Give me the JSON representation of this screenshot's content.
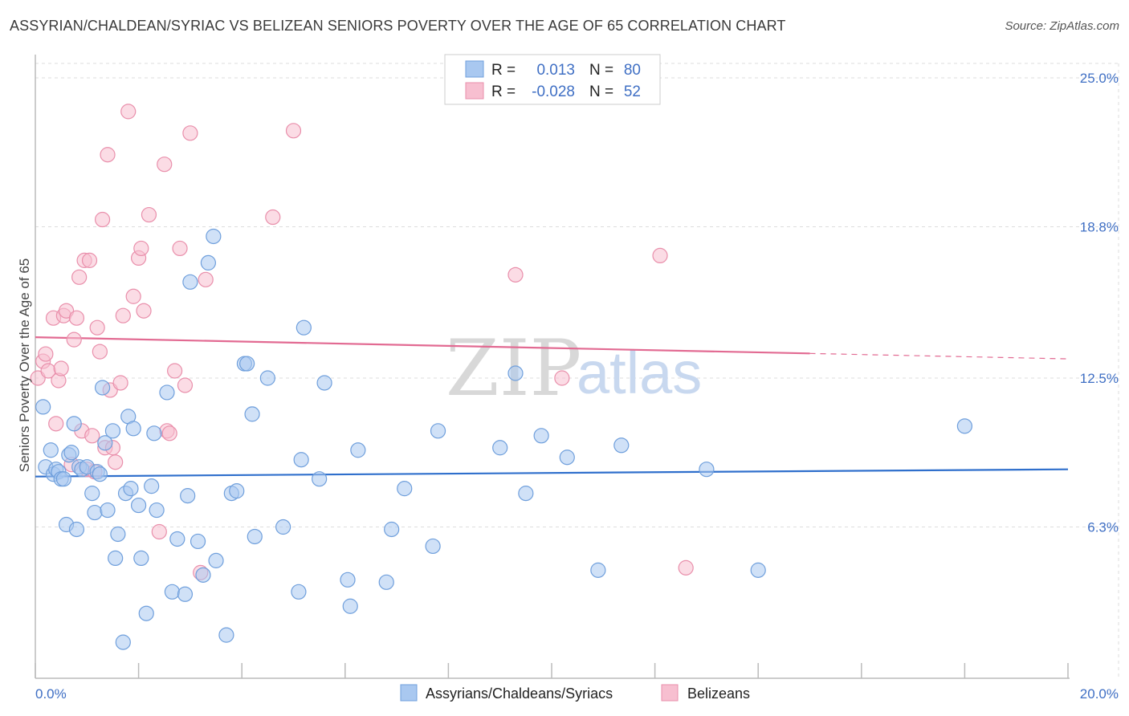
{
  "title": "ASSYRIAN/CHALDEAN/SYRIAC VS BELIZEAN SENIORS POVERTY OVER THE AGE OF 65 CORRELATION CHART",
  "source": "Source: ZipAtlas.com",
  "watermark": {
    "zip": "ZIP",
    "atlas": "atlas"
  },
  "colors": {
    "blue_fill": "#a9c8f0",
    "blue_stroke": "#6f9fdc",
    "blue_line": "#2f6fcc",
    "pink_fill": "#f7bfd0",
    "pink_stroke": "#e98fab",
    "pink_line": "#e26a92",
    "axis_label": "#3f6fc4",
    "grid": "#dddddd"
  },
  "legend": {
    "r_label": "R =",
    "n_label": "N =",
    "rows": [
      {
        "series": "blue",
        "r": "0.013",
        "n": "80"
      },
      {
        "series": "pink",
        "r": "-0.028",
        "n": "52"
      }
    ]
  },
  "chart_data": {
    "type": "scatter",
    "title": "ASSYRIAN/CHALDEAN/SYRIAC VS BELIZEAN SENIORS POVERTY OVER THE AGE OF 65 CORRELATION CHART",
    "xlabel": "",
    "ylabel": "Seniors Poverty Over the Age of 65",
    "xlim": [
      0,
      20
    ],
    "ylim": [
      0,
      25
    ],
    "x_tick_labels": [
      "0.0%",
      "20.0%"
    ],
    "y_ticks": [
      6.3,
      12.5,
      18.8,
      25.0
    ],
    "y_tick_labels": [
      "6.3%",
      "12.5%",
      "18.8%",
      "25.0%"
    ],
    "series": [
      {
        "name": "Assyrians/Chaldeans/Syriacs",
        "color": "blue",
        "r": 0.013,
        "n": 80,
        "trend": {
          "x": [
            0,
            20
          ],
          "y": [
            8.4,
            8.7
          ],
          "dashed_from": null
        },
        "points": [
          [
            0.15,
            11.3
          ],
          [
            0.2,
            8.8
          ],
          [
            0.3,
            9.5
          ],
          [
            0.35,
            8.5
          ],
          [
            0.4,
            8.7
          ],
          [
            0.45,
            8.6
          ],
          [
            0.5,
            8.3
          ],
          [
            0.55,
            8.3
          ],
          [
            0.6,
            6.4
          ],
          [
            0.65,
            9.3
          ],
          [
            0.7,
            9.4
          ],
          [
            0.75,
            10.6
          ],
          [
            0.8,
            6.2
          ],
          [
            0.85,
            8.8
          ],
          [
            0.9,
            8.7
          ],
          [
            1.0,
            8.8
          ],
          [
            1.1,
            7.7
          ],
          [
            1.15,
            6.9
          ],
          [
            1.2,
            8.6
          ],
          [
            1.25,
            8.5
          ],
          [
            1.3,
            12.1
          ],
          [
            1.35,
            9.8
          ],
          [
            1.4,
            7.0
          ],
          [
            1.5,
            10.3
          ],
          [
            1.55,
            5.0
          ],
          [
            1.6,
            6.0
          ],
          [
            1.7,
            1.5
          ],
          [
            1.75,
            7.7
          ],
          [
            1.8,
            10.9
          ],
          [
            1.85,
            7.9
          ],
          [
            1.9,
            10.4
          ],
          [
            2.0,
            7.2
          ],
          [
            2.05,
            5.0
          ],
          [
            2.15,
            2.7
          ],
          [
            2.25,
            8.0
          ],
          [
            2.3,
            10.2
          ],
          [
            2.35,
            7.0
          ],
          [
            2.55,
            11.9
          ],
          [
            2.65,
            3.6
          ],
          [
            2.75,
            5.8
          ],
          [
            2.9,
            3.5
          ],
          [
            2.95,
            7.6
          ],
          [
            3.0,
            16.5
          ],
          [
            3.15,
            5.7
          ],
          [
            3.25,
            4.3
          ],
          [
            3.35,
            17.3
          ],
          [
            3.45,
            18.4
          ],
          [
            3.5,
            4.9
          ],
          [
            3.7,
            1.8
          ],
          [
            3.8,
            7.7
          ],
          [
            3.9,
            7.8
          ],
          [
            4.05,
            13.1
          ],
          [
            4.1,
            13.1
          ],
          [
            4.2,
            11.0
          ],
          [
            4.25,
            5.9
          ],
          [
            4.5,
            12.5
          ],
          [
            4.8,
            6.3
          ],
          [
            5.1,
            3.6
          ],
          [
            5.15,
            9.1
          ],
          [
            5.2,
            14.6
          ],
          [
            5.5,
            8.3
          ],
          [
            5.6,
            12.3
          ],
          [
            6.05,
            4.1
          ],
          [
            6.1,
            3.0
          ],
          [
            6.25,
            9.5
          ],
          [
            6.8,
            4.0
          ],
          [
            6.9,
            6.2
          ],
          [
            7.15,
            7.9
          ],
          [
            7.7,
            5.5
          ],
          [
            7.8,
            10.3
          ],
          [
            9.0,
            9.6
          ],
          [
            9.3,
            12.7
          ],
          [
            9.5,
            7.7
          ],
          [
            9.8,
            10.1
          ],
          [
            10.3,
            9.2
          ],
          [
            10.9,
            4.5
          ],
          [
            11.35,
            9.7
          ],
          [
            13.0,
            8.7
          ],
          [
            14.0,
            4.5
          ],
          [
            18.0,
            10.5
          ]
        ]
      },
      {
        "name": "Belizeans",
        "color": "pink",
        "r": -0.028,
        "n": 52,
        "trend": {
          "x": [
            0,
            20
          ],
          "y": [
            14.2,
            13.3
          ],
          "dashed_from": 15.0
        },
        "points": [
          [
            0.05,
            12.5
          ],
          [
            0.15,
            13.2
          ],
          [
            0.2,
            13.5
          ],
          [
            0.25,
            12.8
          ],
          [
            0.35,
            15.0
          ],
          [
            0.4,
            10.6
          ],
          [
            0.45,
            12.4
          ],
          [
            0.5,
            12.9
          ],
          [
            0.55,
            15.1
          ],
          [
            0.6,
            15.3
          ],
          [
            0.7,
            8.9
          ],
          [
            0.75,
            14.1
          ],
          [
            0.8,
            15.0
          ],
          [
            0.85,
            16.7
          ],
          [
            0.9,
            10.3
          ],
          [
            0.95,
            17.4
          ],
          [
            1.0,
            8.7
          ],
          [
            1.05,
            17.4
          ],
          [
            1.1,
            10.1
          ],
          [
            1.15,
            8.6
          ],
          [
            1.2,
            14.6
          ],
          [
            1.25,
            13.6
          ],
          [
            1.3,
            19.1
          ],
          [
            1.35,
            9.6
          ],
          [
            1.4,
            21.8
          ],
          [
            1.45,
            12.0
          ],
          [
            1.5,
            9.6
          ],
          [
            1.55,
            9.0
          ],
          [
            1.65,
            12.3
          ],
          [
            1.7,
            15.1
          ],
          [
            1.8,
            23.6
          ],
          [
            1.9,
            15.9
          ],
          [
            2.0,
            17.5
          ],
          [
            2.05,
            17.9
          ],
          [
            2.1,
            15.3
          ],
          [
            2.2,
            19.3
          ],
          [
            2.4,
            6.1
          ],
          [
            2.5,
            21.4
          ],
          [
            2.55,
            10.3
          ],
          [
            2.6,
            10.2
          ],
          [
            2.7,
            12.8
          ],
          [
            2.8,
            17.9
          ],
          [
            2.9,
            12.2
          ],
          [
            3.0,
            22.7
          ],
          [
            3.2,
            4.4
          ],
          [
            3.3,
            16.6
          ],
          [
            4.6,
            19.2
          ],
          [
            5.0,
            22.8
          ],
          [
            9.3,
            16.8
          ],
          [
            10.2,
            12.5
          ],
          [
            12.1,
            17.6
          ],
          [
            12.6,
            4.6
          ]
        ]
      }
    ]
  },
  "bottom_legend": [
    {
      "series": "blue",
      "label": "Assyrians/Chaldeans/Syriacs"
    },
    {
      "series": "pink",
      "label": "Belizeans"
    }
  ]
}
